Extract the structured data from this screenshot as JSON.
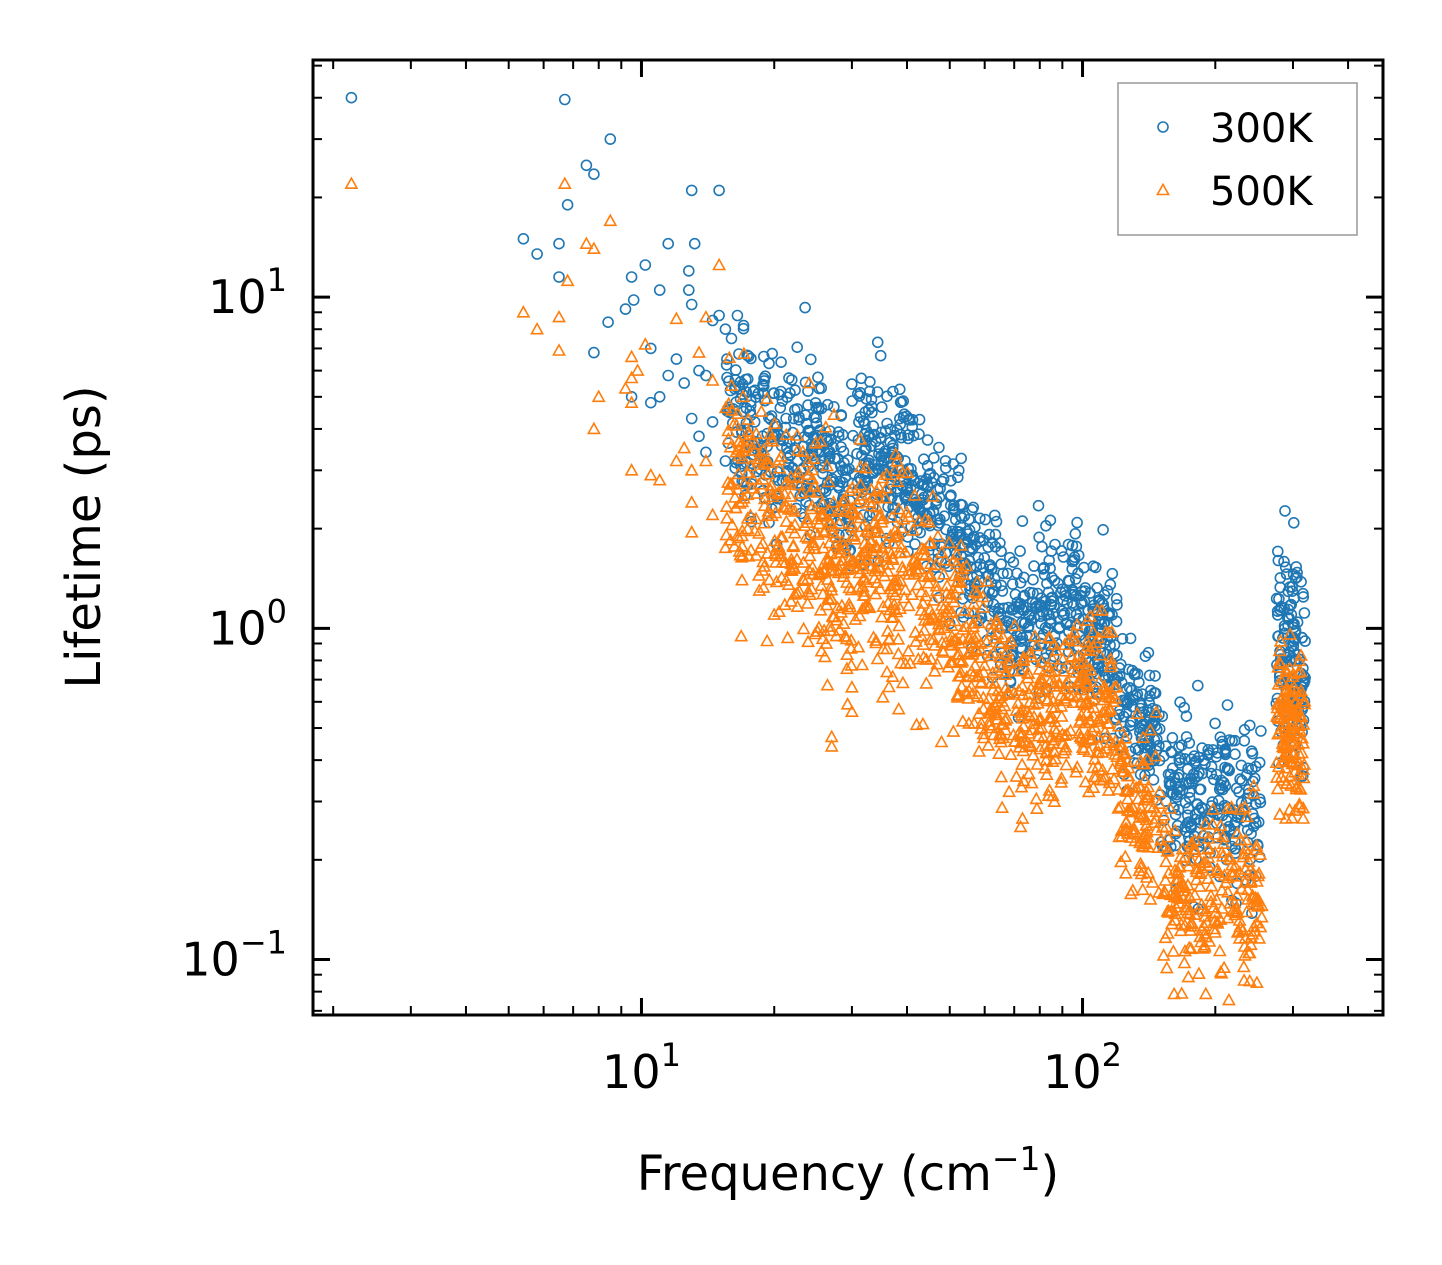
{
  "chart_data": {
    "type": "scatter",
    "xscale": "log",
    "yscale": "log",
    "xlabel": "Frequency (cm",
    "xlabel_sup": "−1",
    "xlabel_end": ")",
    "ylabel": "Lifetime (ps)",
    "xlim": [
      1.8,
      480
    ],
    "ylim": [
      0.068,
      52
    ],
    "x_ticks": [
      {
        "value": 10,
        "base": "10",
        "exp": "1"
      },
      {
        "value": 100,
        "base": "10",
        "exp": "2"
      }
    ],
    "y_ticks": [
      {
        "value": 0.1,
        "base": "10",
        "exp": "−1"
      },
      {
        "value": 1,
        "base": "10",
        "exp": "0"
      },
      {
        "value": 10,
        "base": "10",
        "exp": "1"
      }
    ],
    "legend_position": "top-right",
    "series": [
      {
        "name": "300K",
        "marker": "circle",
        "color": "#1f77b4",
        "points": [
          [
            2.2,
            40.0
          ],
          [
            6.7,
            39.5
          ],
          [
            7.5,
            25.0
          ],
          [
            7.8,
            23.5
          ],
          [
            8.5,
            30.0
          ],
          [
            6.8,
            19.0
          ],
          [
            5.4,
            15.0
          ],
          [
            5.8,
            13.5
          ],
          [
            6.5,
            14.5
          ],
          [
            6.5,
            11.5
          ],
          [
            9.5,
            11.5
          ],
          [
            10.2,
            12.5
          ],
          [
            11.5,
            14.5
          ],
          [
            13.2,
            14.5
          ],
          [
            13.0,
            21.0
          ],
          [
            15.0,
            21.0
          ],
          [
            12.8,
            12.0
          ],
          [
            12.8,
            10.5
          ],
          [
            11.0,
            10.5
          ],
          [
            9.6,
            9.8
          ],
          [
            9.2,
            9.2
          ],
          [
            8.4,
            8.4
          ],
          [
            7.8,
            6.8
          ],
          [
            13.0,
            9.5
          ],
          [
            15.0,
            8.8
          ],
          [
            15.5,
            8.0
          ],
          [
            16.5,
            8.8
          ],
          [
            14.5,
            8.5
          ],
          [
            16.0,
            7.5
          ],
          [
            23.5,
            9.3
          ],
          [
            10.5,
            7.0
          ],
          [
            12.0,
            6.5
          ],
          [
            11.5,
            5.8
          ],
          [
            12.5,
            5.5
          ],
          [
            13.5,
            6.0
          ],
          [
            14.0,
            5.8
          ],
          [
            10.5,
            4.8
          ],
          [
            11.0,
            5.0
          ],
          [
            9.5,
            5.0
          ],
          [
            13.0,
            4.3
          ],
          [
            14.5,
            4.2
          ],
          [
            13.5,
            3.8
          ],
          [
            14.0,
            3.4
          ],
          [
            16.5,
            2.8
          ],
          [
            15.5,
            3.2
          ]
        ],
        "bands": [
          {
            "x": [
              15.5,
              24
            ],
            "y_center": [
              4.3,
              3.3
            ],
            "spread": 0.14,
            "n": 190
          },
          {
            "x": [
              24,
              30
            ],
            "y_center": [
              3.3,
              2.9
            ],
            "spread": 0.13,
            "n": 120
          },
          {
            "x": [
              30,
              40
            ],
            "y_center": [
              3.6,
              3.0
            ],
            "spread": 0.13,
            "n": 160
          },
          {
            "x": [
              40,
              65
            ],
            "y_center": [
              2.9,
              1.3
            ],
            "spread": 0.11,
            "n": 230
          },
          {
            "x": [
              65,
              100
            ],
            "y_center": [
              1.1,
              1.1
            ],
            "spread": 0.12,
            "n": 210
          },
          {
            "x": [
              100,
              120
            ],
            "y_center": [
              1.0,
              0.85
            ],
            "spread": 0.12,
            "n": 110
          },
          {
            "x": [
              120,
              150
            ],
            "y_center": [
              0.58,
              0.48
            ],
            "spread": 0.1,
            "n": 110
          },
          {
            "x": [
              150,
              255
            ],
            "y_center": [
              0.32,
              0.3
            ],
            "spread": 0.12,
            "n": 240
          },
          {
            "x": [
              275,
              320
            ],
            "y_center": [
              0.9,
              0.75
            ],
            "spread": 0.15,
            "n": 140
          }
        ]
      },
      {
        "name": "500K",
        "marker": "triangle",
        "color": "#ff7f0e",
        "points": [
          [
            2.2,
            22.0
          ],
          [
            6.7,
            22.0
          ],
          [
            8.5,
            17.0
          ],
          [
            7.5,
            14.5
          ],
          [
            7.8,
            14.0
          ],
          [
            6.8,
            11.2
          ],
          [
            5.4,
            9.0
          ],
          [
            5.8,
            8.0
          ],
          [
            6.5,
            8.7
          ],
          [
            6.5,
            6.9
          ],
          [
            12.0,
            8.6
          ],
          [
            14.0,
            8.7
          ],
          [
            15.0,
            12.5
          ],
          [
            10.2,
            7.2
          ],
          [
            9.5,
            6.6
          ],
          [
            9.8,
            6.0
          ],
          [
            9.5,
            5.7
          ],
          [
            9.2,
            5.3
          ],
          [
            8.0,
            5.0
          ],
          [
            9.5,
            4.8
          ],
          [
            7.8,
            4.0
          ],
          [
            13.5,
            6.8
          ],
          [
            14.5,
            5.6
          ],
          [
            17.0,
            5.0
          ],
          [
            16.0,
            5.4
          ],
          [
            24.0,
            5.5
          ],
          [
            9.5,
            3.0
          ],
          [
            10.5,
            2.9
          ],
          [
            11.0,
            2.8
          ],
          [
            12.0,
            3.2
          ],
          [
            12.5,
            3.5
          ],
          [
            13.0,
            3.0
          ],
          [
            14.0,
            3.2
          ],
          [
            13.0,
            2.4
          ],
          [
            13.0,
            1.95
          ],
          [
            14.5,
            2.2
          ],
          [
            15.5,
            1.75
          ],
          [
            17.5,
            1.65
          ],
          [
            16.5,
            1.9
          ],
          [
            19.5,
            1.4
          ],
          [
            18.5,
            1.3
          ],
          [
            20.0,
            1.1
          ],
          [
            27.0,
            0.44
          ],
          [
            27.0,
            0.47
          ],
          [
            30.0,
            0.56
          ]
        ],
        "bands": [
          {
            "x": [
              15.5,
              24
            ],
            "y_center": [
              2.9,
              1.7
            ],
            "spread": 0.15,
            "n": 190
          },
          {
            "x": [
              24,
              30
            ],
            "y_center": [
              1.9,
              1.3
            ],
            "spread": 0.17,
            "n": 130
          },
          {
            "x": [
              30,
              40
            ],
            "y_center": [
              1.9,
              1.4
            ],
            "spread": 0.16,
            "n": 160
          },
          {
            "x": [
              40,
              65
            ],
            "y_center": [
              1.4,
              0.65
            ],
            "spread": 0.14,
            "n": 230
          },
          {
            "x": [
              65,
              100
            ],
            "y_center": [
              0.55,
              0.6
            ],
            "spread": 0.12,
            "n": 210
          },
          {
            "x": [
              100,
              120
            ],
            "y_center": [
              0.62,
              0.55
            ],
            "spread": 0.12,
            "n": 110
          },
          {
            "x": [
              120,
              150
            ],
            "y_center": [
              0.32,
              0.27
            ],
            "spread": 0.12,
            "n": 110
          },
          {
            "x": [
              150,
              255
            ],
            "y_center": [
              0.15,
              0.15
            ],
            "spread": 0.13,
            "n": 240
          },
          {
            "x": [
              275,
              320
            ],
            "y_center": [
              0.55,
              0.48
            ],
            "spread": 0.13,
            "n": 140
          }
        ]
      }
    ]
  }
}
